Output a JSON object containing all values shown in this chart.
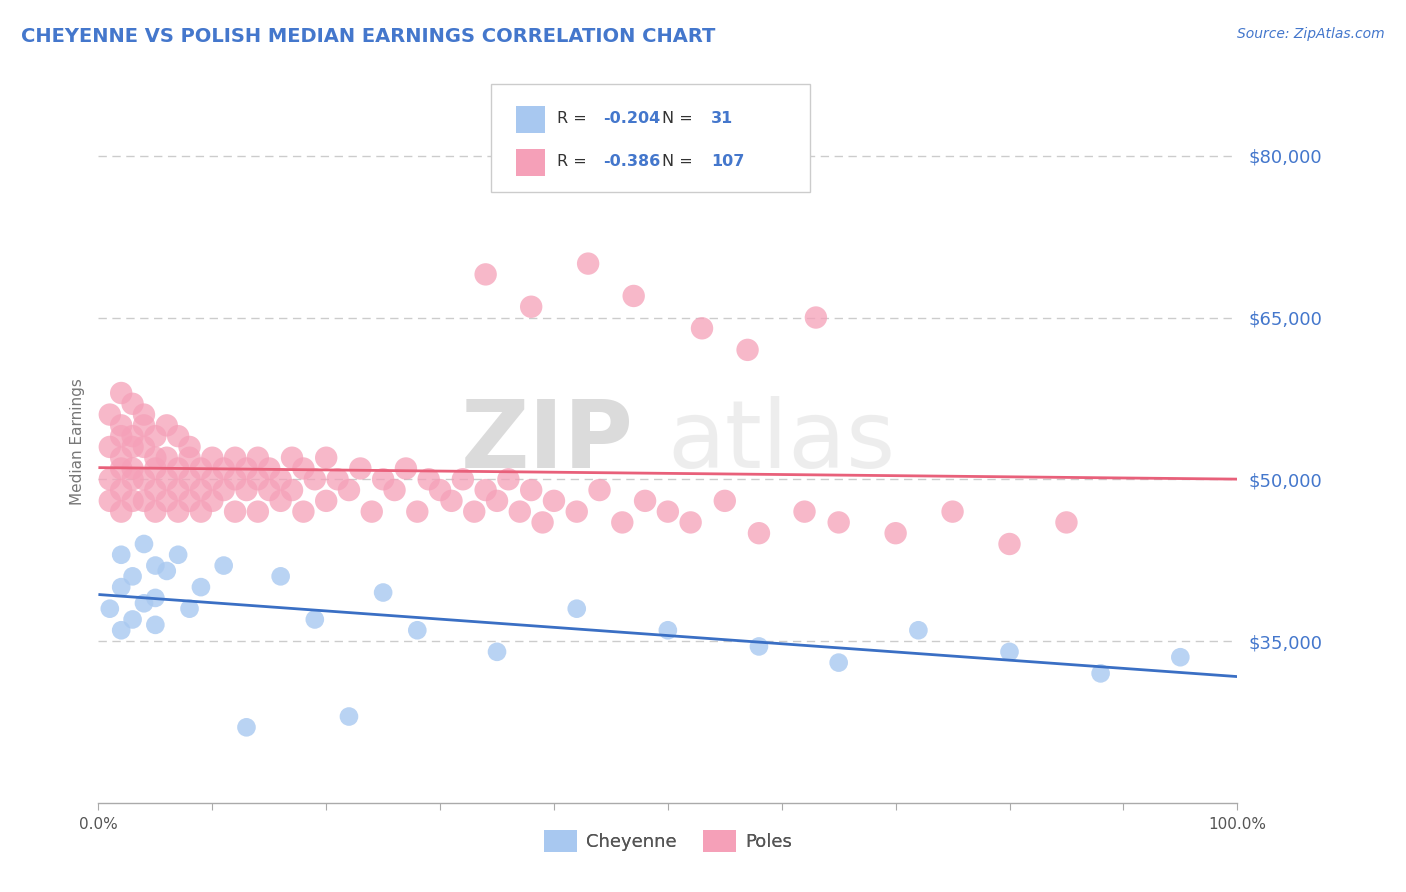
{
  "title": "CHEYENNE VS POLISH MEDIAN EARNINGS CORRELATION CHART",
  "source": "Source: ZipAtlas.com",
  "ylabel": "Median Earnings",
  "yticks": [
    35000,
    50000,
    65000,
    80000
  ],
  "ytick_labels": [
    "$35,000",
    "$50,000",
    "$65,000",
    "$80,000"
  ],
  "ylim": [
    20000,
    87000
  ],
  "xlim": [
    0.0,
    1.0
  ],
  "cheyenne_color": "#A8C8F0",
  "poles_color": "#F5A0B8",
  "cheyenne_line_color": "#3A6FC4",
  "poles_line_color": "#E8607A",
  "text_color": "#4477CC",
  "R_cheyenne": -0.204,
  "N_cheyenne": 31,
  "R_poles": -0.386,
  "N_poles": 107,
  "legend_label_cheyenne": "Cheyenne",
  "legend_label_poles": "Poles",
  "watermark_zip": "ZIP",
  "watermark_atlas": "atlas",
  "background_color": "#FFFFFF",
  "grid_color": "#CCCCCC",
  "title_color": "#4477CC",
  "cheyenne_scatter_x": [
    0.01,
    0.02,
    0.02,
    0.02,
    0.03,
    0.03,
    0.04,
    0.04,
    0.05,
    0.05,
    0.05,
    0.06,
    0.07,
    0.08,
    0.09,
    0.11,
    0.13,
    0.16,
    0.19,
    0.22,
    0.25,
    0.28,
    0.35,
    0.42,
    0.5,
    0.58,
    0.65,
    0.72,
    0.8,
    0.88,
    0.95
  ],
  "cheyenne_scatter_y": [
    38000,
    43000,
    40000,
    36000,
    41000,
    37000,
    44000,
    38500,
    42000,
    36500,
    39000,
    41500,
    43000,
    38000,
    40000,
    42000,
    27000,
    41000,
    37000,
    28000,
    39500,
    36000,
    34000,
    38000,
    36000,
    34500,
    33000,
    36000,
    34000,
    32000,
    33500
  ],
  "poles_scatter_x": [
    0.01,
    0.01,
    0.01,
    0.01,
    0.02,
    0.02,
    0.02,
    0.02,
    0.02,
    0.02,
    0.02,
    0.03,
    0.03,
    0.03,
    0.03,
    0.03,
    0.03,
    0.04,
    0.04,
    0.04,
    0.04,
    0.04,
    0.05,
    0.05,
    0.05,
    0.05,
    0.05,
    0.06,
    0.06,
    0.06,
    0.06,
    0.07,
    0.07,
    0.07,
    0.07,
    0.08,
    0.08,
    0.08,
    0.08,
    0.09,
    0.09,
    0.09,
    0.1,
    0.1,
    0.1,
    0.11,
    0.11,
    0.12,
    0.12,
    0.12,
    0.13,
    0.13,
    0.14,
    0.14,
    0.14,
    0.15,
    0.15,
    0.16,
    0.16,
    0.17,
    0.17,
    0.18,
    0.18,
    0.19,
    0.2,
    0.2,
    0.21,
    0.22,
    0.23,
    0.24,
    0.25,
    0.26,
    0.27,
    0.28,
    0.29,
    0.3,
    0.31,
    0.32,
    0.33,
    0.34,
    0.35,
    0.36,
    0.37,
    0.38,
    0.39,
    0.4,
    0.42,
    0.44,
    0.46,
    0.48,
    0.5,
    0.52,
    0.55,
    0.58,
    0.62,
    0.65,
    0.7,
    0.75,
    0.8,
    0.85,
    0.34,
    0.38,
    0.43,
    0.47,
    0.53,
    0.57,
    0.63
  ],
  "poles_scatter_y": [
    56000,
    53000,
    50000,
    48000,
    58000,
    55000,
    52000,
    49000,
    47000,
    54000,
    51000,
    57000,
    54000,
    51000,
    48000,
    53000,
    50000,
    56000,
    53000,
    50000,
    48000,
    55000,
    54000,
    51000,
    49000,
    52000,
    47000,
    55000,
    52000,
    50000,
    48000,
    54000,
    51000,
    49000,
    47000,
    53000,
    50000,
    48000,
    52000,
    51000,
    49000,
    47000,
    52000,
    50000,
    48000,
    51000,
    49000,
    52000,
    50000,
    47000,
    51000,
    49000,
    52000,
    50000,
    47000,
    51000,
    49000,
    50000,
    48000,
    52000,
    49000,
    51000,
    47000,
    50000,
    52000,
    48000,
    50000,
    49000,
    51000,
    47000,
    50000,
    49000,
    51000,
    47000,
    50000,
    49000,
    48000,
    50000,
    47000,
    49000,
    48000,
    50000,
    47000,
    49000,
    46000,
    48000,
    47000,
    49000,
    46000,
    48000,
    47000,
    46000,
    48000,
    45000,
    47000,
    46000,
    45000,
    47000,
    44000,
    46000,
    69000,
    66000,
    70000,
    67000,
    64000,
    62000,
    65000
  ]
}
